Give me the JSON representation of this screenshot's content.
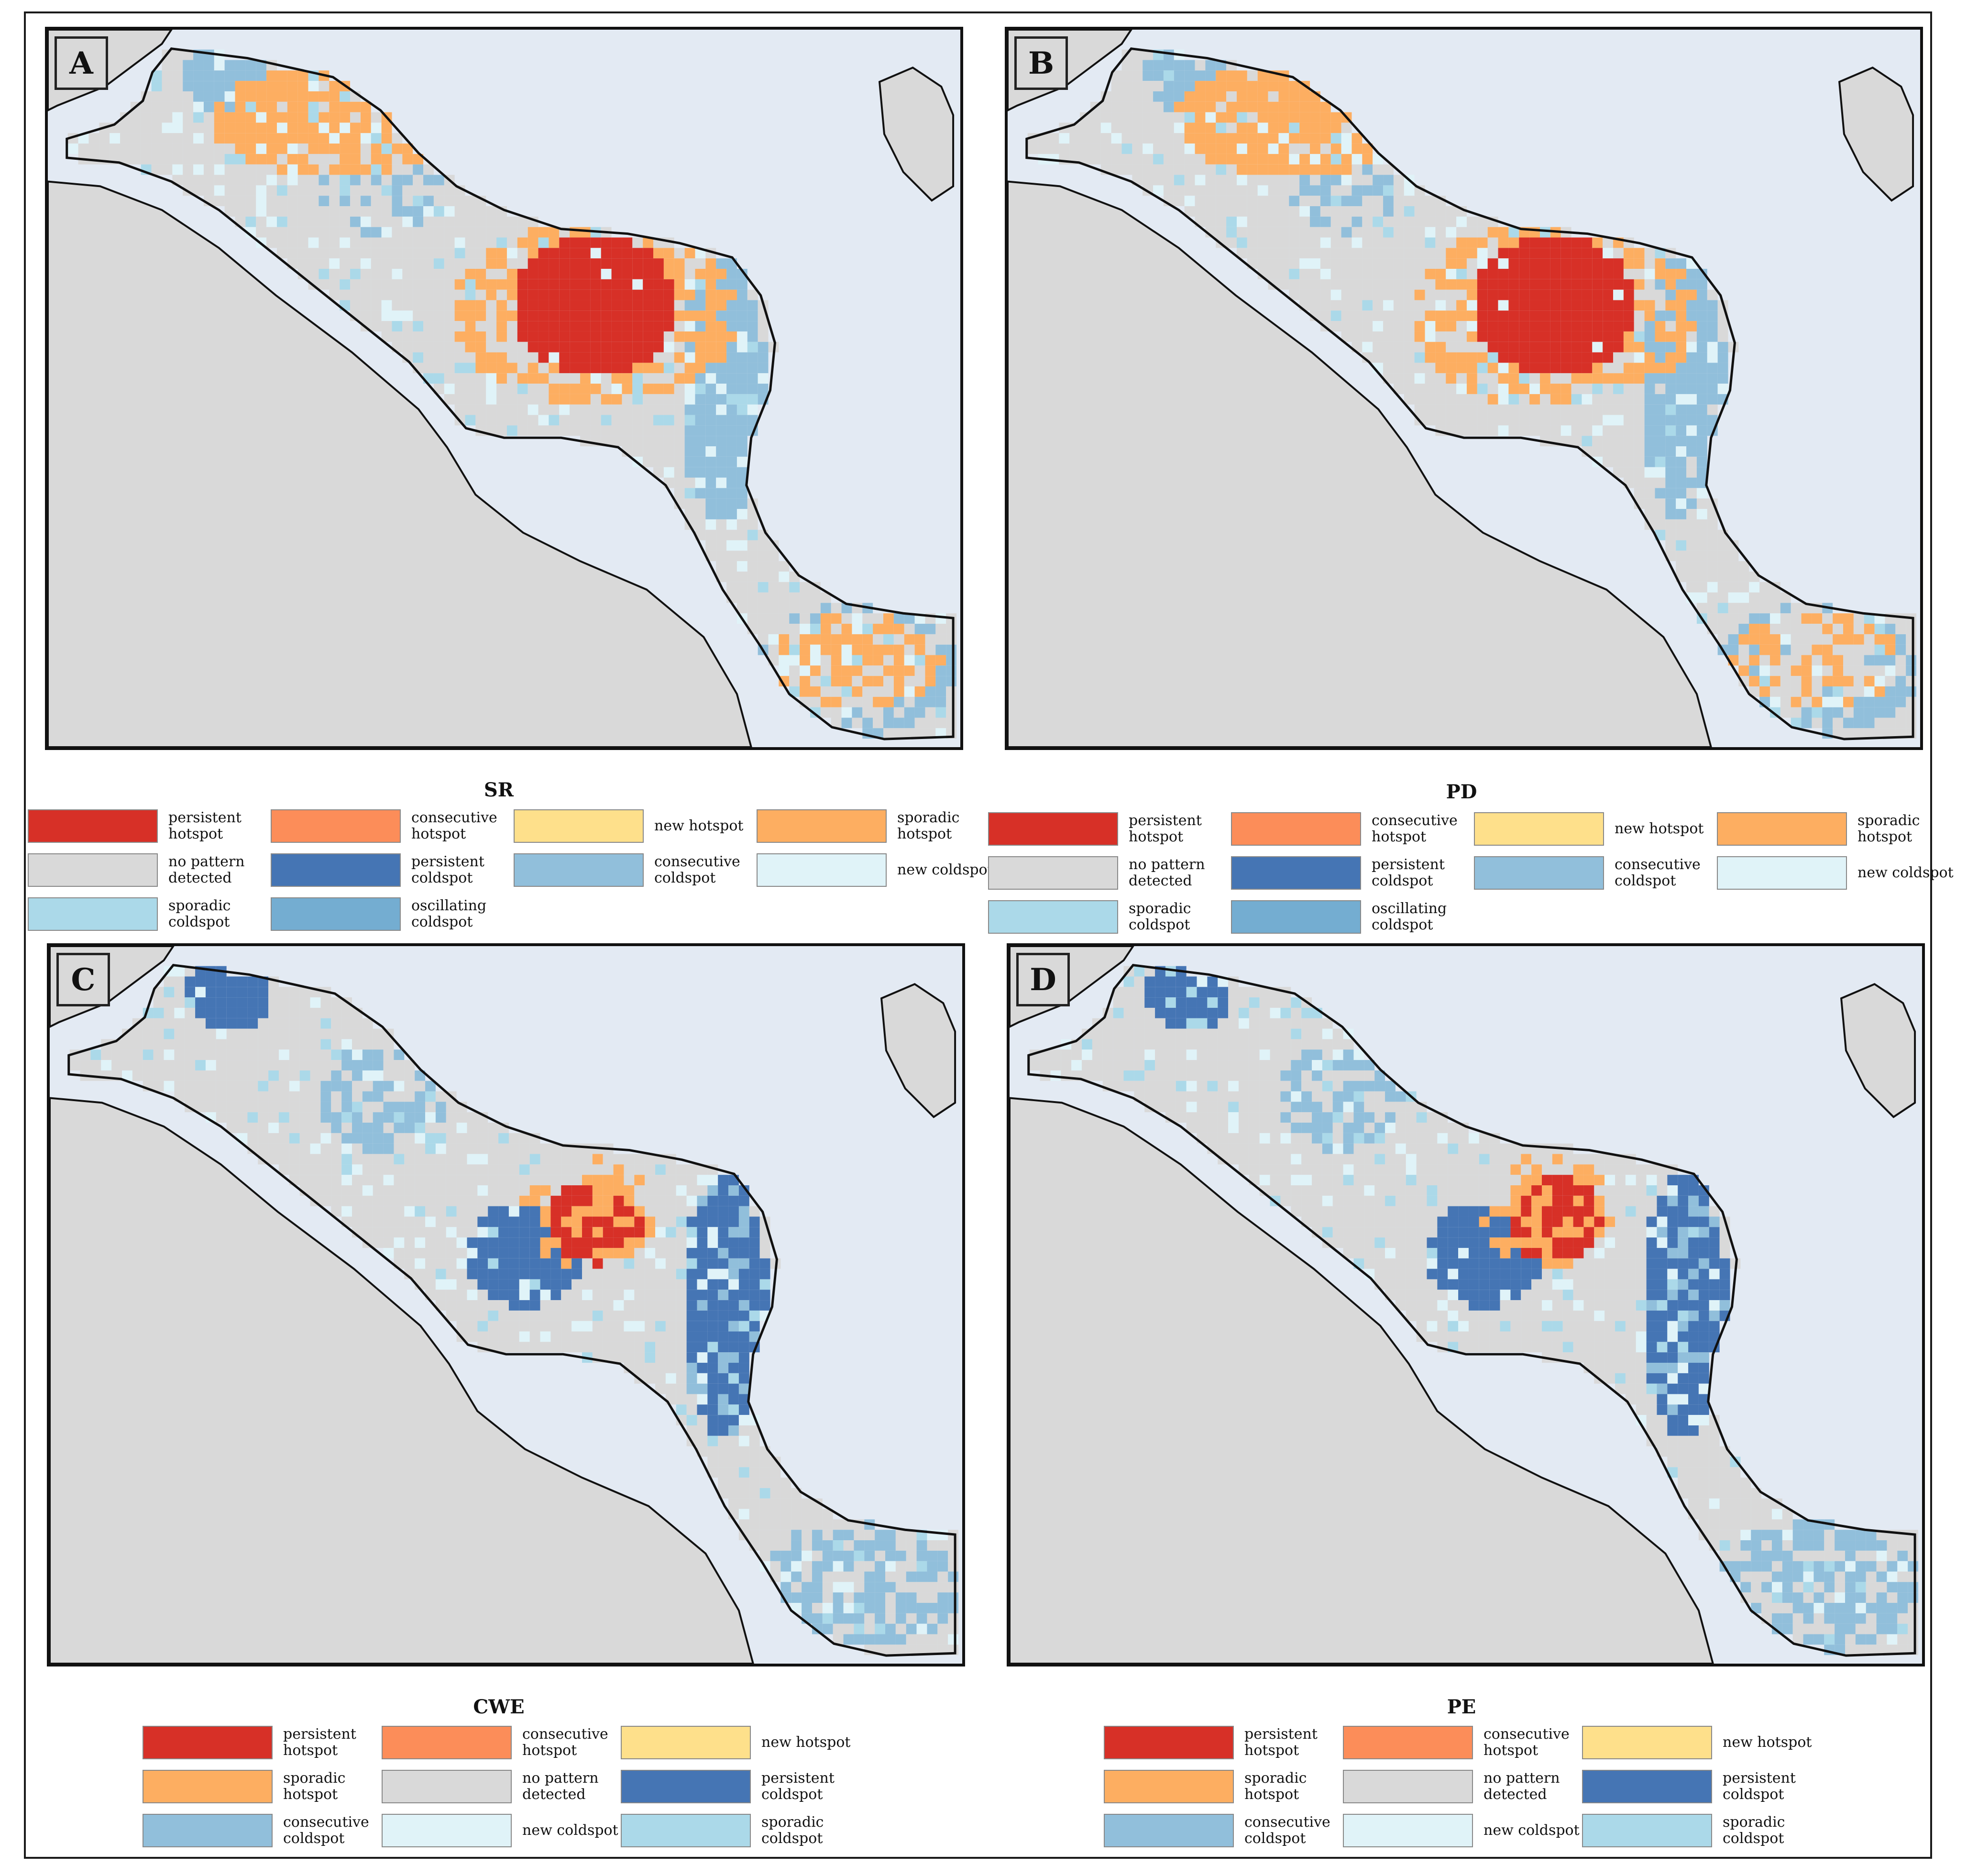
{
  "colors": {
    "persistent_hotspot": "#d73027",
    "consecutive_hotspot": "#fc8d59",
    "new_hotspot": "#fee08b",
    "sporadic_hotspot": "#fdae61",
    "no_pattern": "#d9d9d9",
    "persistent_coldspot": "#4575b4",
    "consecutive_coldspot": "#91bfdb",
    "new_coldspot": "#e0f3f8",
    "sporadic_coldspot": "#abd9e9",
    "oscillating_coldspot": "#74add1",
    "sea": "#e3eaf3",
    "land_outside": "#d9d9d9"
  },
  "panels": [
    {
      "letter": "A",
      "legend_title": "SR"
    },
    {
      "letter": "B",
      "legend_title": "PD"
    },
    {
      "letter": "C",
      "legend_title": "CWE"
    },
    {
      "letter": "D",
      "legend_title": "PE"
    }
  ],
  "legend_labels": {
    "persistent_hotspot": "persistent\nhotspot",
    "consecutive_hotspot": "consecutive\nhotspot",
    "new_hotspot": "new hotspot",
    "sporadic_hotspot": "sporadic\nhotspot",
    "no_pattern": "no pattern\ndetected",
    "persistent_coldspot": "persistent\ncoldspot",
    "consecutive_coldspot": "consecutive\ncoldspot",
    "new_coldspot": "new coldspot",
    "sporadic_coldspot": "sporadic\ncoldspot",
    "oscillating_coldspot": "oscillating\ncoldspot"
  },
  "legend_top": {
    "order": [
      "persistent_hotspot",
      "consecutive_hotspot",
      "new_hotspot",
      "sporadic_hotspot",
      "no_pattern",
      "persistent_coldspot",
      "consecutive_coldspot",
      "new_coldspot",
      "sporadic_coldspot",
      "oscillating_coldspot"
    ]
  },
  "legend_bottom": {
    "order": [
      "persistent_hotspot",
      "consecutive_hotspot",
      "new_hotspot",
      "sporadic_hotspot",
      "no_pattern",
      "persistent_coldspot",
      "consecutive_coldspot",
      "new_coldspot",
      "sporadic_coldspot"
    ]
  },
  "map_patterns": {
    "A": {
      "hot_core": 1.0,
      "hot_orange": 1.0,
      "cold_north": 0.9,
      "cold_east": 0.9,
      "south_orange": 1.0
    },
    "B": {
      "hot_core": 1.0,
      "hot_orange": 1.0,
      "cold_north": 0.7,
      "cold_east": 0.8,
      "south_orange": 0.8
    },
    "C": {
      "hot_core": 0.6,
      "hot_orange": 0.0,
      "cold_north": 1.0,
      "cold_east": 1.0,
      "south_orange": 0.0
    },
    "D": {
      "hot_core": 0.6,
      "hot_orange": 0.0,
      "cold_north": 1.0,
      "cold_east": 1.0,
      "south_orange": 0.0
    }
  }
}
